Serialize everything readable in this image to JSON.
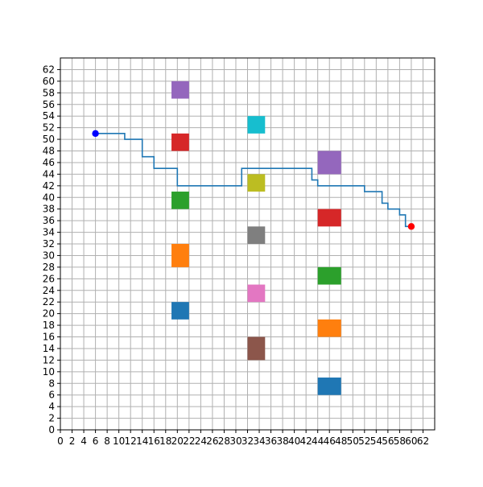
{
  "chart_data": {
    "type": "grid-path",
    "title": "",
    "xlabel": "",
    "ylabel": "",
    "xlim": [
      0,
      64
    ],
    "ylim": [
      0,
      64
    ],
    "grid": true,
    "ticks": {
      "x": [
        "0",
        "2",
        "4",
        "6",
        "8",
        "10",
        "12",
        "14",
        "16",
        "18",
        "20",
        "22",
        "24",
        "26",
        "28",
        "30",
        "32",
        "34",
        "36",
        "38",
        "40",
        "42",
        "44",
        "46",
        "48",
        "50",
        "52",
        "54",
        "56",
        "58",
        "60",
        "62"
      ],
      "y": [
        "0",
        "2",
        "4",
        "6",
        "8",
        "10",
        "12",
        "14",
        "16",
        "18",
        "20",
        "22",
        "24",
        "26",
        "28",
        "30",
        "32",
        "34",
        "36",
        "38",
        "40",
        "42",
        "44",
        "46",
        "48",
        "50",
        "52",
        "54",
        "56",
        "58",
        "60",
        "62"
      ]
    },
    "start": {
      "x": 6,
      "y": 51,
      "color": "#0000ff"
    },
    "goal": {
      "x": 60,
      "y": 35,
      "color": "#ff0000"
    },
    "path_color": "#1f77b4",
    "path": [
      [
        6,
        51
      ],
      [
        11,
        51
      ],
      [
        11,
        50
      ],
      [
        14,
        50
      ],
      [
        14,
        47
      ],
      [
        16,
        47
      ],
      [
        16,
        45
      ],
      [
        20,
        45
      ],
      [
        20,
        42
      ],
      [
        31,
        42
      ],
      [
        31,
        45
      ],
      [
        43,
        45
      ],
      [
        43,
        43
      ],
      [
        44,
        43
      ],
      [
        44,
        42
      ],
      [
        52,
        42
      ],
      [
        52,
        41
      ],
      [
        55,
        41
      ],
      [
        55,
        39
      ],
      [
        56,
        39
      ],
      [
        56,
        38
      ],
      [
        58,
        38
      ],
      [
        58,
        37
      ],
      [
        59,
        37
      ],
      [
        59,
        35
      ],
      [
        60,
        35
      ]
    ],
    "obstacles": [
      {
        "x": 19,
        "y": 57,
        "w": 3,
        "h": 3,
        "color": "#9467bd"
      },
      {
        "x": 19,
        "y": 48,
        "w": 3,
        "h": 3,
        "color": "#d62728"
      },
      {
        "x": 19,
        "y": 38,
        "w": 3,
        "h": 3,
        "color": "#2ca02c"
      },
      {
        "x": 19,
        "y": 28,
        "w": 3,
        "h": 4,
        "color": "#ff7f0e"
      },
      {
        "x": 19,
        "y": 19,
        "w": 3,
        "h": 3,
        "color": "#1f77b4"
      },
      {
        "x": 32,
        "y": 51,
        "w": 3,
        "h": 3,
        "color": "#17becf"
      },
      {
        "x": 32,
        "y": 41,
        "w": 3,
        "h": 3,
        "color": "#bcbd22"
      },
      {
        "x": 32,
        "y": 32,
        "w": 3,
        "h": 3,
        "color": "#7f7f7f"
      },
      {
        "x": 32,
        "y": 22,
        "w": 3,
        "h": 3,
        "color": "#e377c2"
      },
      {
        "x": 32,
        "y": 12,
        "w": 3,
        "h": 4,
        "color": "#8c564b"
      },
      {
        "x": 44,
        "y": 44,
        "w": 4,
        "h": 4,
        "color": "#9467bd"
      },
      {
        "x": 44,
        "y": 35,
        "w": 4,
        "h": 3,
        "color": "#d62728"
      },
      {
        "x": 44,
        "y": 25,
        "w": 4,
        "h": 3,
        "color": "#2ca02c"
      },
      {
        "x": 44,
        "y": 16,
        "w": 4,
        "h": 3,
        "color": "#ff7f0e"
      },
      {
        "x": 44,
        "y": 6,
        "w": 4,
        "h": 3,
        "color": "#1f77b4"
      }
    ]
  }
}
